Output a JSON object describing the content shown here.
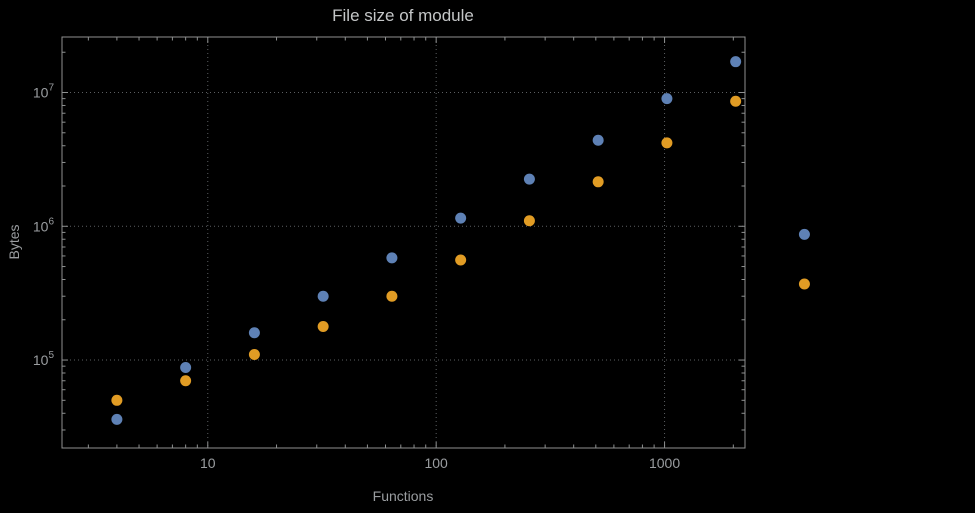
{
  "chart_data": {
    "type": "scatter",
    "title": "File size of module",
    "xlabel": "Functions",
    "ylabel": "Bytes",
    "x_scale": "log",
    "y_scale": "log",
    "grid": "dotted-at-decades",
    "legend": "none",
    "xlim": [
      2.3,
      2250
    ],
    "ylim": [
      22000,
      26000000
    ],
    "x": [
      4,
      8,
      16,
      32,
      64,
      128,
      256,
      512,
      1024,
      2048,
      4096
    ],
    "series": [
      {
        "name": "blue-series",
        "color": "#5e81b5",
        "values": [
          36000,
          88000,
          160000,
          300000,
          580000,
          1150000,
          2250000,
          4400000,
          9000000,
          17000000,
          870000
        ]
      },
      {
        "name": "orange-series",
        "color": "#e19c24",
        "values": [
          50000,
          70000,
          110000,
          178000,
          300000,
          560000,
          1100000,
          2150000,
          4200000,
          8600000,
          370000
        ]
      }
    ],
    "x_ticks": [
      10,
      100,
      1000
    ],
    "x_tick_labels": [
      "10",
      "100",
      "1000"
    ],
    "y_ticks": [
      100000,
      1000000,
      10000000
    ],
    "y_tick_labels": [
      {
        "base": "10",
        "exp": "5"
      },
      {
        "base": "10",
        "exp": "6"
      },
      {
        "base": "10",
        "exp": "7"
      }
    ]
  },
  "colors": {
    "background": "#000000",
    "frame": "#8f9191",
    "grid": "#5c5f62",
    "tick_label": "#9a9da0",
    "title": "#c4c6c7",
    "series_blue": "#5e81b5",
    "series_orange": "#e19c24"
  }
}
